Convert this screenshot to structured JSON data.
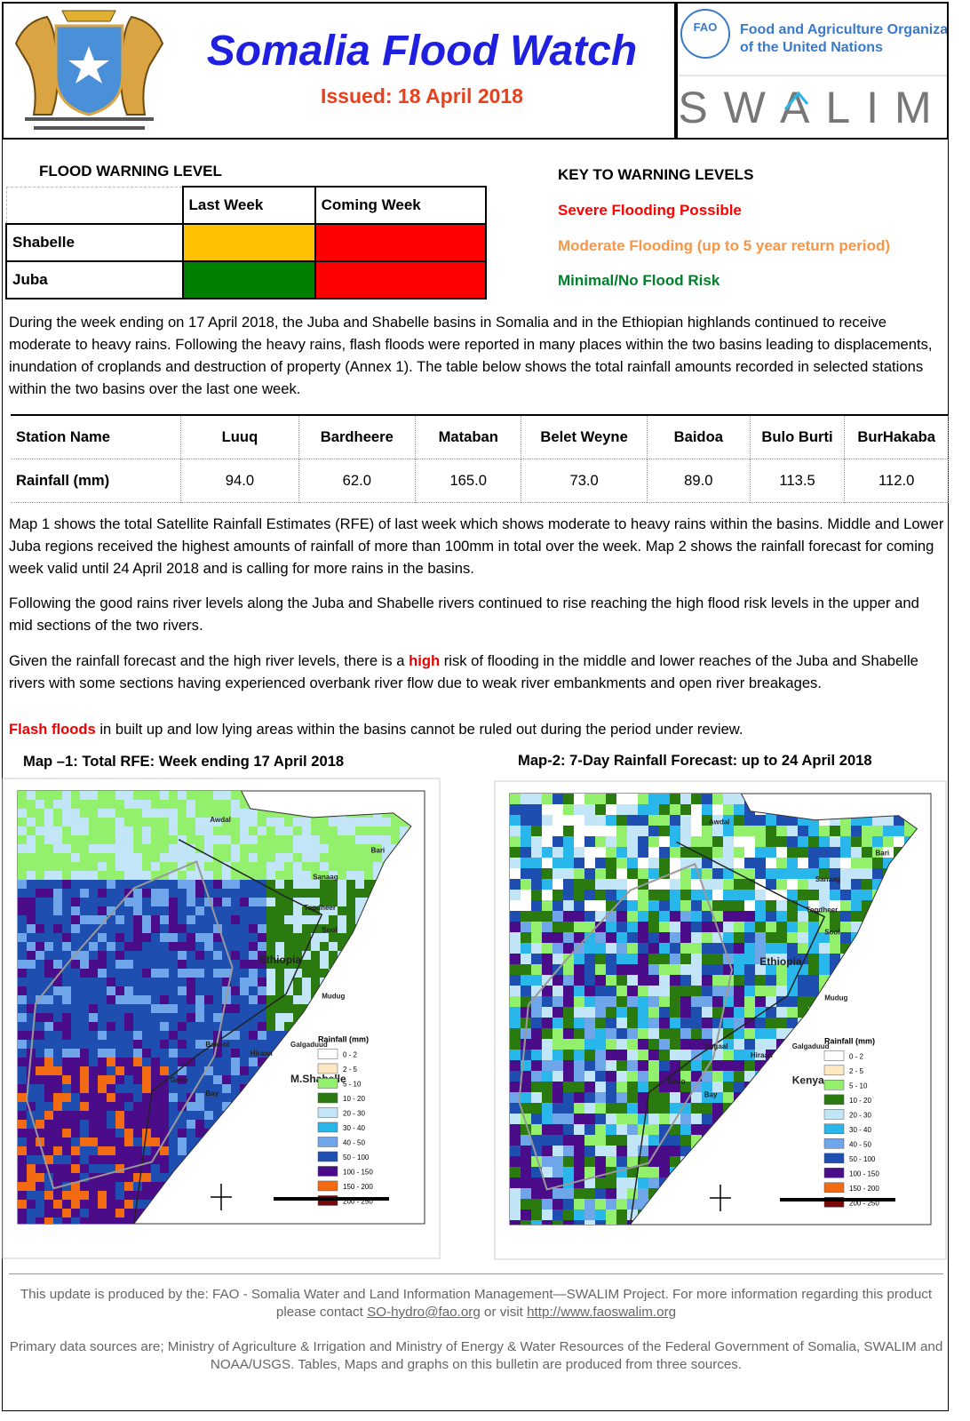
{
  "header": {
    "title": "Somalia Flood Watch",
    "issued": "Issued:  18 April  2018",
    "fao_line1": "Food and Agriculture Organization",
    "fao_line2": "of the United Nations",
    "fao_badge": "FAO",
    "swalim": "SWALIM"
  },
  "warning": {
    "title": "FLOOD WARNING LEVEL",
    "columns": [
      "Last Week",
      "Coming Week"
    ],
    "rows": [
      {
        "name": "Shabelle",
        "colors": [
          "#ffc000",
          "#ff0000"
        ]
      },
      {
        "name": "Juba",
        "colors": [
          "#008000",
          "#ff0000"
        ]
      }
    ]
  },
  "key": {
    "title": "KEY TO WARNING LEVELS",
    "items": [
      {
        "text": "Severe Flooding Possible",
        "color": "#ff0000"
      },
      {
        "text": "Moderate Flooding (up to 5 year return period)",
        "color": "#f79646"
      },
      {
        "text": "Minimal/No Flood Risk",
        "color": "#00802b"
      }
    ]
  },
  "paragraph1": "During the week ending on 17 April 2018, the Juba and Shabelle basins in Somalia and in the Ethiopian highlands continued to receive moderate to heavy rains. Following the heavy rains, flash floods were reported in many places within the two basins leading to displacements, inundation of croplands  and destruction of property (Annex 1). The table below shows the total rainfall amounts recorded in selected stations within the two basins over the last one week.",
  "rainfall_table": {
    "header": [
      "Station Name",
      "Luuq",
      "Bardheere",
      "Mataban",
      "Belet Weyne",
      "Baidoa",
      "Bulo Burti",
      "BurHakaba"
    ],
    "row": [
      "Rainfall (mm)",
      "94.0",
      "62.0",
      "165.0",
      "73.0",
      "89.0",
      "113.5",
      "112.0"
    ]
  },
  "paragraph2": "Map 1 shows the total Satellite Rainfall Estimates (RFE) of last week which shows moderate to heavy rains within the basins. Middle and Lower Juba regions received the highest amounts of rainfall of more than 100mm in total over the week. Map 2 shows the rainfall forecast for coming week valid until 24 April 2018 and is calling for more rains in the basins.",
  "paragraph3": "Following the good rains river levels along the Juba and Shabelle rivers continued to rise reaching the high flood risk levels in the upper and mid sections of the two rivers.",
  "paragraph4": {
    "before": "Given the rainfall forecast  and the high river levels, there is a ",
    "highlight": "high",
    "after": " risk of flooding in the middle and lower reaches of the Juba and Shabelle rivers with some sections having experienced overbank river flow due to weak river embankments and open river breakages."
  },
  "paragraph5": {
    "highlight": "Flash floods",
    "after": " in built up and low lying areas within the basins cannot be ruled out during the period under review."
  },
  "legend": {
    "title": "Rainfall (mm)",
    "items": [
      {
        "label": "0 - 2",
        "color": "#ffffff"
      },
      {
        "label": "2 - 5",
        "color": "#fde8c2"
      },
      {
        "label": "5 - 10",
        "color": "#93f06c"
      },
      {
        "label": "10 - 20",
        "color": "#2a7a10"
      },
      {
        "label": "20 - 30",
        "color": "#c2e6f8"
      },
      {
        "label": "30 - 40",
        "color": "#29b6ea"
      },
      {
        "label": "40 - 50",
        "color": "#6fa6ea"
      },
      {
        "label": "50 - 100",
        "color": "#1e4fb0"
      },
      {
        "label": "100 - 150",
        "color": "#4a0c88"
      },
      {
        "label": "150 - 200",
        "color": "#f26a12"
      },
      {
        "label": "200 - 250",
        "color": "#7a0808"
      }
    ]
  },
  "maps": [
    {
      "title": "Map –1: Total RFE: Week  ending 17 April 2018",
      "labels": [
        "Awdal",
        "Sanaag",
        "Bari",
        "Togdheer",
        "Sool",
        "Ethiopia",
        "Mudug",
        "Galgaduud",
        "Bakool",
        "Hiraan",
        "Gedo",
        "Bay",
        "M.Shabelle"
      ]
    },
    {
      "title": "Map-2: 7-Day Rainfall Forecast: up to 24 April 2018",
      "labels": [
        "Awdal",
        "Sanaag",
        "Bari",
        "Togdheer",
        "Sool",
        "Ethiopia",
        "Mudug",
        "Galgaduud",
        "Nugaal",
        "Hiraan",
        "Gedo",
        "Bay",
        "Kenya"
      ]
    }
  ],
  "footer": {
    "line1_before": "This update is produced by the: FAO - Somalia Water and Land Information Management—SWALIM Project.  For more information regarding this product please contact ",
    "email": "SO-hydro@fao.org",
    "line1_middle": " or visit ",
    "url": "http://www.faoswalim.org",
    "line2": "Primary data sources are; Ministry of Agriculture & Irrigation and Ministry  of Energy & Water Resources  of the Federal Government of Somalia, SWALIM and NOAA/USGS. Tables, Maps and graphs on this bulletin are produced from three sources."
  }
}
